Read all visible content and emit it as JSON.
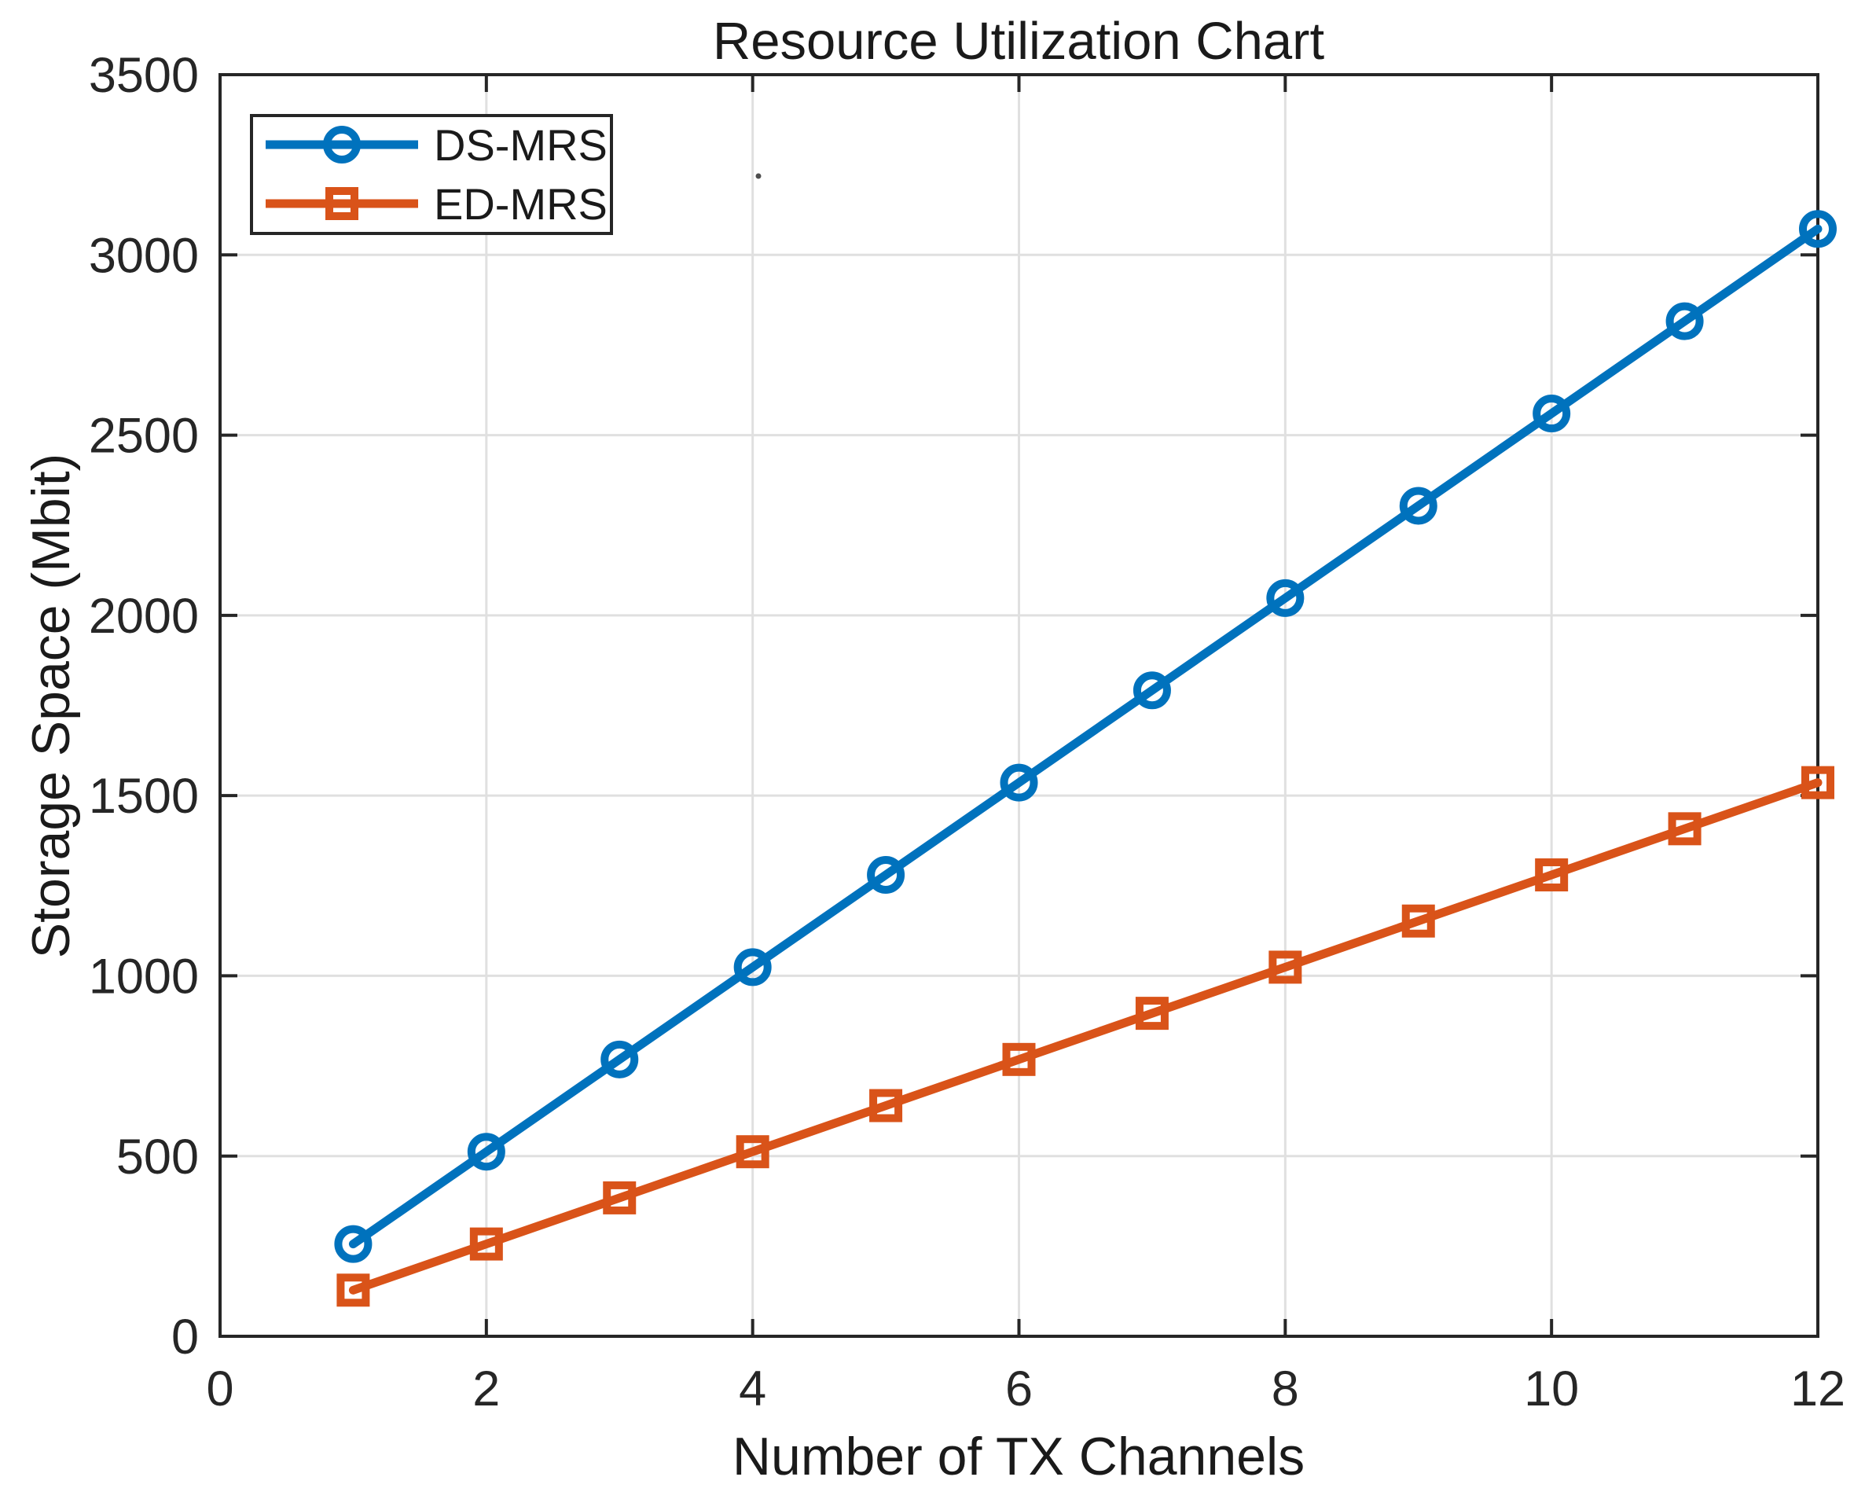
{
  "figure": {
    "background": "#ffffff"
  },
  "chart_data": {
    "type": "line",
    "title": "Resource Utilization Chart",
    "xlabel": "Number of TX Channels",
    "ylabel": "Storage Space (Mbit)",
    "x": [
      1,
      2,
      3,
      4,
      5,
      6,
      7,
      8,
      9,
      10,
      11,
      12
    ],
    "series": [
      {
        "name": "DS-MRS",
        "color": "#0072BD",
        "marker": "circle",
        "values": [
          256,
          512,
          768,
          1024,
          1280,
          1536,
          1792,
          2048,
          2304,
          2560,
          2816,
          3072
        ]
      },
      {
        "name": "ED-MRS",
        "color": "#D95319",
        "marker": "square",
        "values": [
          128,
          256,
          384,
          512,
          640,
          768,
          896,
          1024,
          1152,
          1280,
          1408,
          1536
        ]
      }
    ],
    "xlim": [
      0,
      12
    ],
    "ylim": [
      0,
      3500
    ],
    "xticks": [
      0,
      2,
      4,
      6,
      8,
      10,
      12
    ],
    "yticks": [
      0,
      500,
      1000,
      1500,
      2000,
      2500,
      3000,
      3500
    ],
    "grid": true,
    "legend": {
      "position": "top-left"
    },
    "colors": {
      "axis": "#262626",
      "grid": "#e0e0e0",
      "text": "#1a1a1a"
    }
  }
}
